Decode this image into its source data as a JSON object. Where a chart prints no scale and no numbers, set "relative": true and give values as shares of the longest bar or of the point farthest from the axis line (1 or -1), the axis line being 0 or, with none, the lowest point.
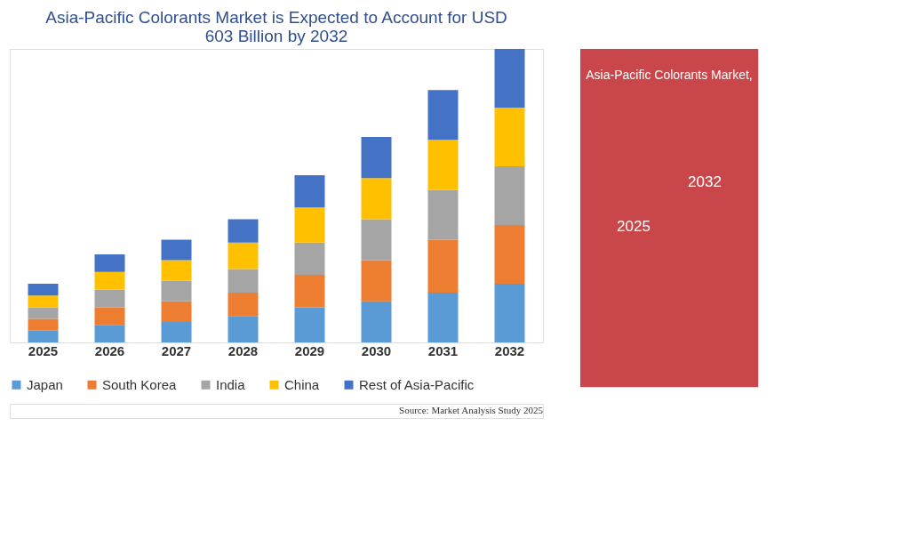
{
  "chart_data": {
    "type": "bar",
    "title": "Asia-Pacific Colorants Market is Expected to Account for USD 603 Billion by 2032",
    "categories": [
      "2025",
      "2026",
      "2027",
      "2028",
      "2029",
      "2030",
      "2031",
      "2032"
    ],
    "stacked": true,
    "relative": true,
    "legend": "bottom",
    "grid": false,
    "series": [
      {
        "name": "Japan",
        "color": "#5b9bd5",
        "values": [
          0.04,
          0.06,
          0.07,
          0.09,
          0.12,
          0.14,
          0.17,
          0.2
        ]
      },
      {
        "name": "South Korea",
        "color": "#ed7d31",
        "values": [
          0.04,
          0.06,
          0.07,
          0.08,
          0.11,
          0.14,
          0.18,
          0.2
        ]
      },
      {
        "name": "India",
        "color": "#a5a5a5",
        "values": [
          0.04,
          0.06,
          0.07,
          0.08,
          0.11,
          0.14,
          0.17,
          0.2
        ]
      },
      {
        "name": "China",
        "color": "#ffc000",
        "values": [
          0.04,
          0.06,
          0.07,
          0.09,
          0.12,
          0.14,
          0.17,
          0.2
        ]
      },
      {
        "name": "Rest of Asia-Pacific",
        "color": "#4472c4",
        "values": [
          0.04,
          0.06,
          0.07,
          0.08,
          0.11,
          0.14,
          0.17,
          0.2
        ]
      }
    ],
    "annotations": [
      "Asia-Pacific Colorants Market,",
      "2025",
      "2032",
      "Source: Market Analysis Study 2025"
    ]
  }
}
